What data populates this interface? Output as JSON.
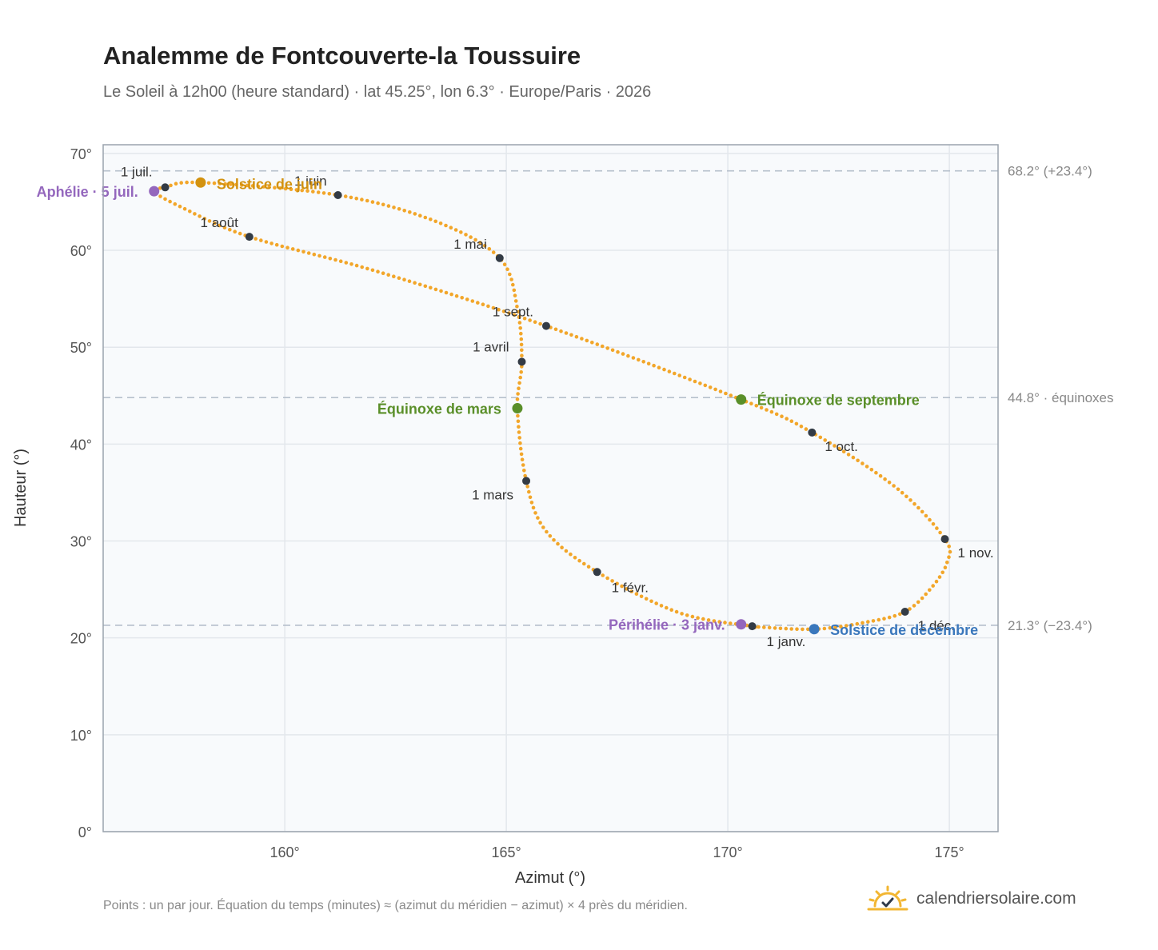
{
  "header": {
    "title": "Analemme de Fontcouverte-la Toussuire",
    "subtitle": "Le Soleil à 12h00 (heure standard) · lat 45.25°, lon 6.3° · Europe/Paris · 2026"
  },
  "chart_data": {
    "type": "scatter",
    "xlabel": "Azimut (°)",
    "ylabel": "Hauteur (°)",
    "xlim": [
      155.9,
      176.1
    ],
    "ylim": [
      0,
      70.9
    ],
    "xticks": [
      "160°",
      "165°",
      "170°",
      "175°"
    ],
    "xtick_values": [
      160,
      165,
      170,
      175
    ],
    "yticks": [
      "0°",
      "10°",
      "20°",
      "30°",
      "40°",
      "50°",
      "60°",
      "70°"
    ],
    "ytick_values": [
      0,
      10,
      20,
      30,
      40,
      50,
      60,
      70
    ],
    "grid": true,
    "series_color": "#f2a62a",
    "key_points": [
      {
        "date": "Jan 1",
        "az": 170.55,
        "alt": 21.2
      },
      {
        "date": "Jan 15",
        "az": 168.9,
        "alt": 22.6
      },
      {
        "date": "Feb 1",
        "az": 167.05,
        "alt": 26.8
      },
      {
        "date": "Feb 15",
        "az": 165.9,
        "alt": 31.0
      },
      {
        "date": "Mar 1",
        "az": 165.45,
        "alt": 36.2
      },
      {
        "date": "Mar 20",
        "az": 165.25,
        "alt": 43.7
      },
      {
        "date": "Apr 1",
        "az": 165.35,
        "alt": 48.5
      },
      {
        "date": "Apr 15",
        "az": 165.25,
        "alt": 54.0
      },
      {
        "date": "May 1",
        "az": 164.85,
        "alt": 59.2
      },
      {
        "date": "May 15",
        "az": 163.4,
        "alt": 63.0
      },
      {
        "date": "Jun 1",
        "az": 161.2,
        "alt": 65.7
      },
      {
        "date": "Jun 21",
        "az": 158.1,
        "alt": 67.0
      },
      {
        "date": "Jul 1",
        "az": 157.3,
        "alt": 66.5
      },
      {
        "date": "Jul 5",
        "az": 157.05,
        "alt": 66.1
      },
      {
        "date": "Jul 15",
        "az": 157.6,
        "alt": 64.6
      },
      {
        "date": "Aug 1",
        "az": 159.2,
        "alt": 61.4
      },
      {
        "date": "Aug 15",
        "az": 162.1,
        "alt": 57.8
      },
      {
        "date": "Sep 1",
        "az": 165.9,
        "alt": 52.2
      },
      {
        "date": "Sep 22",
        "az": 170.3,
        "alt": 44.6
      },
      {
        "date": "Oct 1",
        "az": 171.9,
        "alt": 41.2
      },
      {
        "date": "Oct 15",
        "az": 173.8,
        "alt": 35.5
      },
      {
        "date": "Nov 1",
        "az": 174.9,
        "alt": 30.2
      },
      {
        "date": "Nov 10",
        "az": 174.95,
        "alt": 27.8
      },
      {
        "date": "Nov 20",
        "az": 174.6,
        "alt": 25.2
      },
      {
        "date": "Dec 1",
        "az": 174.0,
        "alt": 22.7
      },
      {
        "date": "Dec 10",
        "az": 173.1,
        "alt": 21.6
      },
      {
        "date": "Dec 21",
        "az": 171.95,
        "alt": 20.9
      },
      {
        "date": "Dec 31",
        "az": 170.6,
        "alt": 21.15
      }
    ],
    "month_markers": [
      {
        "label": "1 janv.",
        "az": 170.55,
        "alt": 21.2,
        "anchor": "start",
        "dx": 18,
        "dy": 25
      },
      {
        "label": "1 févr.",
        "az": 167.05,
        "alt": 26.8,
        "anchor": "start",
        "dx": 18,
        "dy": 25
      },
      {
        "label": "1 mars",
        "az": 165.45,
        "alt": 36.2,
        "anchor": "end",
        "dx": -16,
        "dy": 23
      },
      {
        "label": "1 avril",
        "az": 165.35,
        "alt": 48.5,
        "anchor": "end",
        "dx": -16,
        "dy": -13
      },
      {
        "label": "1 mai",
        "az": 164.85,
        "alt": 59.2,
        "anchor": "end",
        "dx": -16,
        "dy": -12
      },
      {
        "label": "1 juin",
        "az": 161.2,
        "alt": 65.7,
        "anchor": "end",
        "dx": -14,
        "dy": -12
      },
      {
        "label": "1 juil.",
        "az": 157.3,
        "alt": 66.5,
        "anchor": "end",
        "dx": -16,
        "dy": -14
      },
      {
        "label": "1 août",
        "az": 159.2,
        "alt": 61.4,
        "anchor": "end",
        "dx": -14,
        "dy": -12
      },
      {
        "label": "1 sept.",
        "az": 165.9,
        "alt": 52.2,
        "anchor": "end",
        "dx": -16,
        "dy": -12
      },
      {
        "label": "1 oct.",
        "az": 171.9,
        "alt": 41.2,
        "anchor": "start",
        "dx": 16,
        "dy": 23
      },
      {
        "label": "1 nov.",
        "az": 174.9,
        "alt": 30.2,
        "anchor": "start",
        "dx": 16,
        "dy": 23
      },
      {
        "label": "1 déc.",
        "az": 174.0,
        "alt": 22.7,
        "anchor": "start",
        "dx": 16,
        "dy": 23
      }
    ],
    "events": [
      {
        "label": "Solstice de juin",
        "az": 158.1,
        "alt": 67.0,
        "color": "#d3920f",
        "anchor": "start",
        "dx": 20,
        "dy": 8
      },
      {
        "label": "Aphélie · 5 juil.",
        "az": 157.05,
        "alt": 66.1,
        "color": "#9467bd",
        "anchor": "end",
        "dx": -20,
        "dy": 7
      },
      {
        "label": "Équinoxe de mars",
        "az": 165.25,
        "alt": 43.7,
        "color": "#5a8f29",
        "anchor": "end",
        "dx": -20,
        "dy": 7
      },
      {
        "label": "Équinoxe de septembre",
        "az": 170.3,
        "alt": 44.6,
        "color": "#5a8f29",
        "anchor": "start",
        "dx": 20,
        "dy": 7
      },
      {
        "label": "Périhélie · 3 janv.",
        "az": 170.3,
        "alt": 21.4,
        "color": "#9467bd",
        "anchor": "end",
        "dx": -20,
        "dy": 7
      },
      {
        "label": "Solstice de décembre",
        "az": 171.95,
        "alt": 20.9,
        "color": "#3a77bc",
        "anchor": "start",
        "dx": 20,
        "dy": 7
      }
    ],
    "reference_lines": [
      {
        "alt": 68.2,
        "label": "68.2° (+23.4°)"
      },
      {
        "alt": 44.8,
        "label": "44.8° · équinoxes"
      },
      {
        "alt": 21.3,
        "label": "21.3° (−23.4°)"
      }
    ]
  },
  "footer": {
    "note": "Points : un par jour. Équation du temps (minutes) ≈ (azimut du méridien − azimut) × 4 près du méridien.",
    "brand": "calendriersolaire.com",
    "brand_icon": "sun-logo-icon",
    "brand_color": "#f2b632"
  }
}
